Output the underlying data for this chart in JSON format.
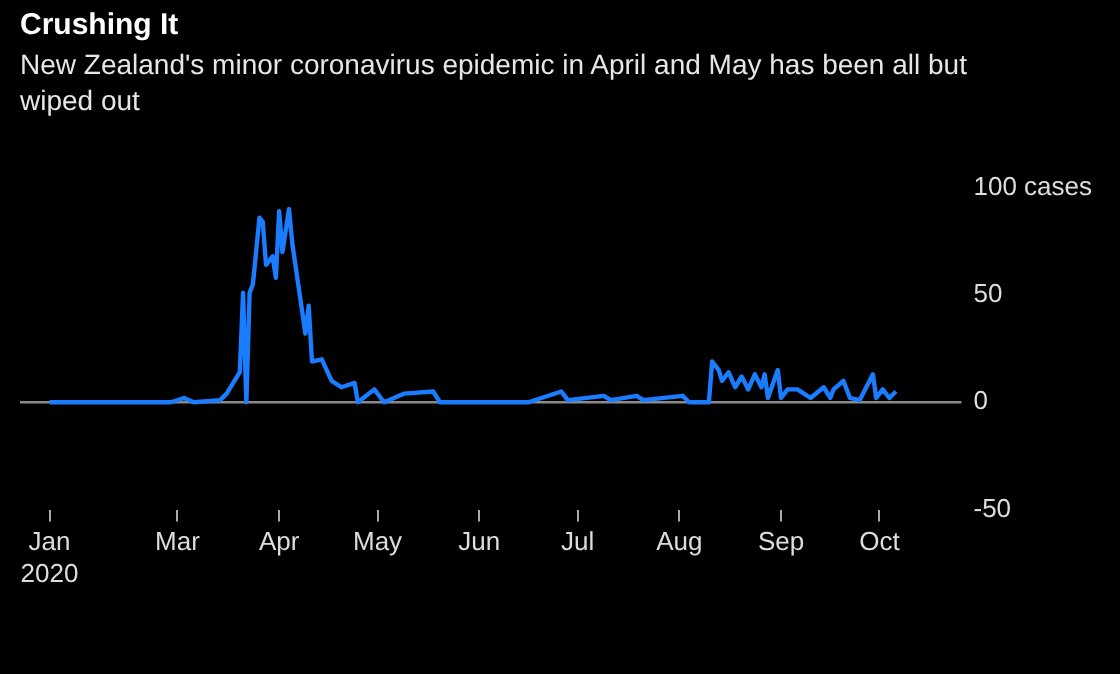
{
  "chart_data": {
    "type": "line",
    "title": "Crushing It",
    "subtitle": "New Zealand's minor coronavirus epidemic in April and May has been all but wiped out",
    "x": [
      "2020-01-22",
      "2020-02-28",
      "2020-03-03",
      "2020-03-06",
      "2020-03-14",
      "2020-03-16",
      "2020-03-20",
      "2020-03-21",
      "2020-03-22",
      "2020-03-23",
      "2020-03-24",
      "2020-03-26",
      "2020-03-27",
      "2020-03-28",
      "2020-03-30",
      "2020-03-31",
      "2020-04-01",
      "2020-04-02",
      "2020-04-04",
      "2020-04-05",
      "2020-04-07",
      "2020-04-09",
      "2020-04-10",
      "2020-04-11",
      "2020-04-14",
      "2020-04-17",
      "2020-04-20",
      "2020-04-24",
      "2020-04-25",
      "2020-04-30",
      "2020-05-03",
      "2020-05-09",
      "2020-05-18",
      "2020-05-20",
      "2020-06-16",
      "2020-06-26",
      "2020-06-28",
      "2020-07-09",
      "2020-07-11",
      "2020-07-19",
      "2020-07-21",
      "2020-08-02",
      "2020-08-04",
      "2020-08-10",
      "2020-08-11",
      "2020-08-13",
      "2020-08-14",
      "2020-08-16",
      "2020-08-18",
      "2020-08-20",
      "2020-08-22",
      "2020-08-24",
      "2020-08-26",
      "2020-08-27",
      "2020-08-28",
      "2020-08-31",
      "2020-09-01",
      "2020-09-03",
      "2020-09-06",
      "2020-09-10",
      "2020-09-14",
      "2020-09-16",
      "2020-09-17",
      "2020-09-20",
      "2020-09-22",
      "2020-09-25",
      "2020-09-29",
      "2020-09-30",
      "2020-10-02",
      "2020-10-04",
      "2020-10-06"
    ],
    "series": [
      {
        "color": "#1a7cff",
        "values": [
          0,
          0,
          2,
          0,
          1,
          4,
          14,
          51,
          0,
          51,
          55,
          86,
          84,
          64,
          68,
          58,
          89,
          70,
          90,
          74,
          53,
          32,
          45,
          19,
          20,
          10,
          7,
          9,
          0,
          6,
          0,
          4,
          5,
          0,
          0,
          5,
          1,
          3,
          1,
          3,
          1,
          3,
          0,
          0,
          19,
          15,
          10,
          14,
          7,
          12,
          6,
          13,
          7,
          13,
          2,
          15,
          2,
          6,
          6,
          2,
          7,
          2,
          6,
          10,
          2,
          1,
          13,
          2,
          6,
          2,
          5
        ]
      }
    ],
    "xlim": [
      "2020-01-13",
      "2020-10-26"
    ],
    "xticks": [
      {
        "value": "2020-01-22",
        "label": "Jan\n2020"
      },
      {
        "value": "2020-03-01",
        "label": "Mar"
      },
      {
        "value": "2020-04-01",
        "label": "Apr"
      },
      {
        "value": "2020-05-01",
        "label": "May"
      },
      {
        "value": "2020-06-01",
        "label": "Jun"
      },
      {
        "value": "2020-07-01",
        "label": "Jul"
      },
      {
        "value": "2020-08-01",
        "label": "Aug"
      },
      {
        "value": "2020-09-01",
        "label": "Sep"
      },
      {
        "value": "2020-10-01",
        "label": "Oct"
      }
    ],
    "ylim": [
      -50,
      100
    ],
    "yticks": [
      {
        "value": 100,
        "label": "100 cases"
      },
      50,
      0,
      -50
    ],
    "ref_lines": [
      {
        "axis": "y",
        "value": 0,
        "color": "#8a8a8a"
      }
    ],
    "grid": false,
    "legend": false,
    "marker": "none",
    "line_style": "solid"
  }
}
